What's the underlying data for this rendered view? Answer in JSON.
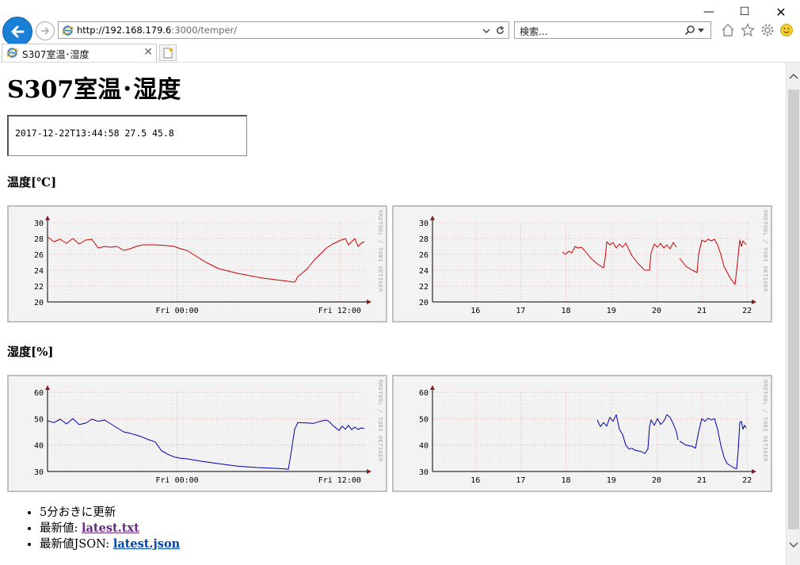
{
  "browser": {
    "url_host": "http://192.168.179.6",
    "url_path": ":3000/temper/",
    "search_placeholder": "検索...",
    "tab_title": "S307室温･湿度",
    "accent_color": "#1c7fd6"
  },
  "page": {
    "title": "S307室温･湿度",
    "latest_text": "2017-12-22T13:44:58 27.5 45.8",
    "temp_heading": "温度[℃]",
    "hum_heading": "湿度[%]",
    "info": [
      {
        "text": "5分おきに更新"
      },
      {
        "text": "最新値: ",
        "link": "latest.txt"
      },
      {
        "text": "最新値JSON: ",
        "link": "latest.json"
      }
    ]
  },
  "chart_data": [
    {
      "type": "line",
      "id": "temp-day",
      "watermark": "RRDTOOL / TOBI OETIKER",
      "ylim": [
        20,
        30
      ],
      "yticks": [
        "20",
        "22",
        "24",
        "26",
        "28",
        "30"
      ],
      "xticks": [
        {
          "label": "Fri 00:00",
          "pos": 0.409
        },
        {
          "label": "Fri 12:00",
          "pos": 0.922
        }
      ],
      "color": "#cc0000",
      "points": [
        [
          0,
          28.2
        ],
        [
          0.02,
          27.6
        ],
        [
          0.04,
          27.9
        ],
        [
          0.06,
          27.4
        ],
        [
          0.08,
          28.0
        ],
        [
          0.1,
          27.3
        ],
        [
          0.12,
          27.8
        ],
        [
          0.14,
          27.9
        ],
        [
          0.16,
          26.8
        ],
        [
          0.18,
          27.0
        ],
        [
          0.2,
          26.9
        ],
        [
          0.22,
          27.0
        ],
        [
          0.24,
          26.5
        ],
        [
          0.26,
          26.7
        ],
        [
          0.28,
          27.0
        ],
        [
          0.3,
          27.2
        ],
        [
          0.34,
          27.2
        ],
        [
          0.38,
          27.1
        ],
        [
          0.4,
          27.0
        ],
        [
          0.42,
          26.7
        ],
        [
          0.44,
          26.5
        ],
        [
          0.46,
          26.0
        ],
        [
          0.48,
          25.5
        ],
        [
          0.5,
          25.0
        ],
        [
          0.52,
          24.6
        ],
        [
          0.54,
          24.2
        ],
        [
          0.56,
          24.0
        ],
        [
          0.6,
          23.6
        ],
        [
          0.64,
          23.3
        ],
        [
          0.68,
          23.0
        ],
        [
          0.72,
          22.8
        ],
        [
          0.76,
          22.6
        ],
        [
          0.78,
          22.5
        ],
        [
          0.785,
          22.8
        ],
        [
          0.79,
          23.2
        ],
        [
          0.8,
          23.5
        ],
        [
          0.82,
          24.2
        ],
        [
          0.84,
          25.2
        ],
        [
          0.86,
          26.0
        ],
        [
          0.88,
          26.8
        ],
        [
          0.9,
          27.3
        ],
        [
          0.92,
          27.7
        ],
        [
          0.94,
          28.0
        ],
        [
          0.95,
          27.2
        ],
        [
          0.96,
          27.6
        ],
        [
          0.97,
          28.0
        ],
        [
          0.98,
          27.0
        ],
        [
          0.99,
          27.4
        ],
        [
          1.0,
          27.6
        ]
      ]
    },
    {
      "type": "line",
      "id": "temp-week",
      "watermark": "RRDTOOL / TOBI OETIKER",
      "ylim": [
        20,
        30
      ],
      "yticks": [
        "20",
        "22",
        "24",
        "26",
        "28",
        "30"
      ],
      "xticks": [
        {
          "label": "16",
          "pos": 0.1357
        },
        {
          "label": "17",
          "pos": 0.2786
        },
        {
          "label": "18",
          "pos": 0.4214
        },
        {
          "label": "19",
          "pos": 0.5643
        },
        {
          "label": "20",
          "pos": 0.7071
        },
        {
          "label": "21",
          "pos": 0.85
        },
        {
          "label": "22",
          "pos": 0.9929
        }
      ],
      "color": "#cc0000",
      "segments": [
        [
          [
            0.41,
            26.3
          ],
          [
            0.42,
            26.0
          ],
          [
            0.43,
            26.4
          ],
          [
            0.44,
            26.2
          ],
          [
            0.45,
            27.0
          ],
          [
            0.46,
            26.8
          ],
          [
            0.47,
            26.9
          ],
          [
            0.48,
            26.5
          ],
          [
            0.5,
            25.5
          ],
          [
            0.52,
            24.8
          ],
          [
            0.54,
            24.3
          ],
          [
            0.545,
            25.5
          ],
          [
            0.55,
            27.6
          ],
          [
            0.56,
            27.2
          ],
          [
            0.57,
            27.5
          ],
          [
            0.58,
            26.8
          ],
          [
            0.59,
            27.3
          ],
          [
            0.6,
            26.9
          ],
          [
            0.61,
            27.4
          ],
          [
            0.62,
            26.6
          ],
          [
            0.63,
            25.8
          ],
          [
            0.65,
            24.8
          ],
          [
            0.67,
            24.0
          ],
          [
            0.685,
            24.0
          ],
          [
            0.69,
            26.2
          ],
          [
            0.7,
            27.3
          ],
          [
            0.71,
            26.9
          ],
          [
            0.72,
            27.4
          ],
          [
            0.73,
            26.8
          ],
          [
            0.74,
            27.2
          ],
          [
            0.75,
            26.7
          ],
          [
            0.76,
            27.5
          ],
          [
            0.77,
            26.9
          ]
        ],
        [
          [
            0.78,
            25.5
          ],
          [
            0.8,
            24.5
          ],
          [
            0.82,
            24.0
          ],
          [
            0.835,
            23.7
          ],
          [
            0.84,
            26.0
          ],
          [
            0.85,
            27.8
          ],
          [
            0.86,
            27.6
          ],
          [
            0.87,
            27.9
          ],
          [
            0.88,
            27.7
          ],
          [
            0.89,
            27.9
          ],
          [
            0.9,
            27.2
          ],
          [
            0.91,
            26.0
          ],
          [
            0.92,
            24.5
          ],
          [
            0.94,
            23.0
          ],
          [
            0.955,
            22.2
          ],
          [
            0.96,
            24.0
          ],
          [
            0.97,
            27.8
          ],
          [
            0.975,
            27.0
          ],
          [
            0.98,
            27.7
          ],
          [
            0.99,
            27.2
          ]
        ]
      ]
    },
    {
      "type": "line",
      "id": "hum-day",
      "watermark": "RRDTOOL / TOBI OETIKER",
      "ylim": [
        30,
        60
      ],
      "yticks": [
        "30",
        "40",
        "50",
        "60"
      ],
      "xticks": [
        {
          "label": "Fri 00:00",
          "pos": 0.409
        },
        {
          "label": "Fri 12:00",
          "pos": 0.922
        }
      ],
      "color": "#0000aa",
      "points": [
        [
          0,
          49.2
        ],
        [
          0.02,
          48.5
        ],
        [
          0.04,
          49.8
        ],
        [
          0.06,
          48.0
        ],
        [
          0.08,
          50.0
        ],
        [
          0.1,
          47.8
        ],
        [
          0.12,
          48.3
        ],
        [
          0.14,
          49.8
        ],
        [
          0.16,
          49.0
        ],
        [
          0.18,
          49.5
        ],
        [
          0.2,
          48.0
        ],
        [
          0.22,
          46.5
        ],
        [
          0.24,
          45.0
        ],
        [
          0.26,
          44.5
        ],
        [
          0.28,
          43.8
        ],
        [
          0.3,
          43.0
        ],
        [
          0.32,
          42.0
        ],
        [
          0.34,
          41.2
        ],
        [
          0.35,
          39.5
        ],
        [
          0.36,
          37.8
        ],
        [
          0.38,
          36.5
        ],
        [
          0.4,
          35.5
        ],
        [
          0.42,
          35.0
        ],
        [
          0.44,
          34.8
        ],
        [
          0.48,
          34.0
        ],
        [
          0.52,
          33.3
        ],
        [
          0.56,
          32.6
        ],
        [
          0.6,
          32.0
        ],
        [
          0.66,
          31.5
        ],
        [
          0.72,
          31.2
        ],
        [
          0.75,
          31.0
        ],
        [
          0.76,
          30.8
        ],
        [
          0.77,
          38.0
        ],
        [
          0.78,
          46.0
        ],
        [
          0.79,
          48.5
        ],
        [
          0.82,
          48.4
        ],
        [
          0.84,
          48.2
        ],
        [
          0.86,
          49.0
        ],
        [
          0.88,
          49.5
        ],
        [
          0.89,
          48.8
        ],
        [
          0.9,
          47.5
        ],
        [
          0.92,
          45.5
        ],
        [
          0.93,
          47.2
        ],
        [
          0.94,
          46.0
        ],
        [
          0.95,
          47.5
        ],
        [
          0.96,
          45.8
        ],
        [
          0.97,
          46.8
        ],
        [
          0.98,
          45.9
        ],
        [
          0.99,
          46.5
        ],
        [
          1.0,
          46.3
        ]
      ]
    },
    {
      "type": "line",
      "id": "hum-week",
      "watermark": "RRDTOOL / TOBI OETIKER",
      "ylim": [
        30,
        60
      ],
      "yticks": [
        "30",
        "40",
        "50",
        "60"
      ],
      "xticks": [
        {
          "label": "16",
          "pos": 0.1357
        },
        {
          "label": "17",
          "pos": 0.2786
        },
        {
          "label": "18",
          "pos": 0.4214
        },
        {
          "label": "19",
          "pos": 0.5643
        },
        {
          "label": "20",
          "pos": 0.7071
        },
        {
          "label": "21",
          "pos": 0.85
        },
        {
          "label": "22",
          "pos": 0.9929
        }
      ],
      "color": "#0000aa",
      "segments": [
        [
          [
            0.52,
            49.5
          ],
          [
            0.53,
            47.0
          ],
          [
            0.54,
            48.5
          ],
          [
            0.55,
            47.2
          ],
          [
            0.56,
            50.5
          ],
          [
            0.57,
            49.0
          ],
          [
            0.58,
            51.5
          ],
          [
            0.59,
            46.0
          ],
          [
            0.6,
            44.0
          ],
          [
            0.61,
            40.0
          ],
          [
            0.62,
            38.5
          ],
          [
            0.63,
            38.8
          ],
          [
            0.64,
            38.0
          ],
          [
            0.66,
            37.5
          ],
          [
            0.67,
            36.8
          ],
          [
            0.68,
            38.5
          ],
          [
            0.685,
            47.0
          ],
          [
            0.69,
            49.5
          ],
          [
            0.7,
            47.5
          ],
          [
            0.71,
            50.0
          ],
          [
            0.72,
            47.8
          ],
          [
            0.73,
            49.0
          ],
          [
            0.74,
            51.5
          ],
          [
            0.75,
            50.5
          ],
          [
            0.76,
            48.0
          ],
          [
            0.77,
            45.0
          ],
          [
            0.775,
            42.0
          ]
        ],
        [
          [
            0.78,
            41.5
          ],
          [
            0.8,
            40.0
          ],
          [
            0.82,
            39.5
          ],
          [
            0.83,
            38.8
          ],
          [
            0.84,
            45.0
          ],
          [
            0.85,
            50.0
          ],
          [
            0.86,
            49.0
          ],
          [
            0.87,
            50.2
          ],
          [
            0.88,
            49.5
          ],
          [
            0.89,
            50.0
          ],
          [
            0.9,
            46.0
          ],
          [
            0.91,
            40.0
          ],
          [
            0.92,
            35.5
          ],
          [
            0.93,
            33.0
          ],
          [
            0.95,
            31.5
          ],
          [
            0.96,
            31.0
          ],
          [
            0.965,
            38.0
          ],
          [
            0.97,
            48.5
          ],
          [
            0.975,
            49.0
          ],
          [
            0.98,
            46.0
          ],
          [
            0.985,
            47.5
          ],
          [
            0.99,
            46.5
          ]
        ]
      ]
    }
  ]
}
